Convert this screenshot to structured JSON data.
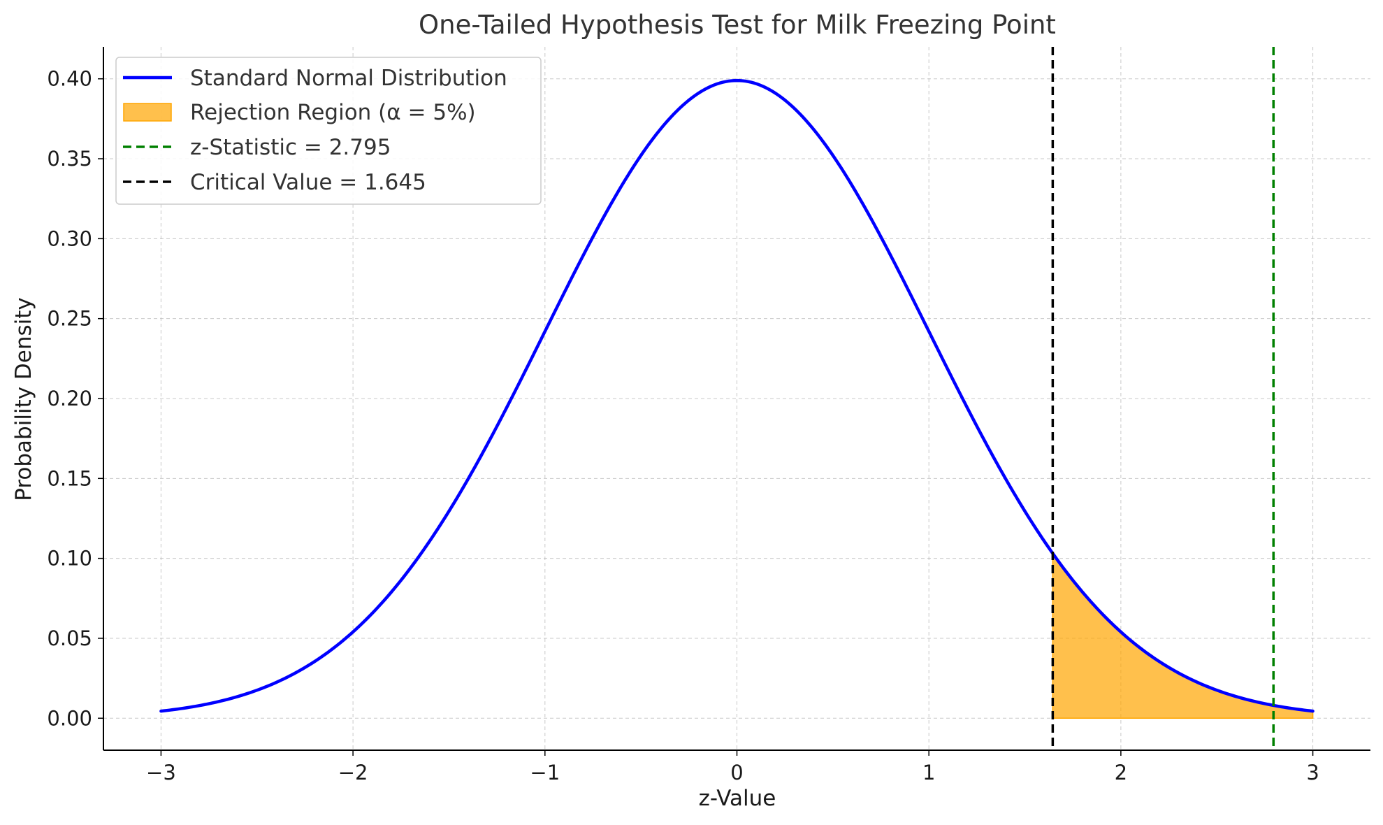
{
  "chart_data": {
    "type": "line",
    "title": "One-Tailed Hypothesis Test for Milk Freezing Point",
    "xlabel": "z-Value",
    "ylabel": "Probability Density",
    "xlim": [
      -3.3,
      3.3
    ],
    "ylim": [
      -0.02,
      0.42
    ],
    "x_ticks": [
      -3,
      -2,
      -1,
      0,
      1,
      2,
      3
    ],
    "x_tick_labels": [
      "−3",
      "−2",
      "−1",
      "0",
      "1",
      "2",
      "3"
    ],
    "y_ticks": [
      0.0,
      0.05,
      0.1,
      0.15,
      0.2,
      0.25,
      0.3,
      0.35,
      0.4
    ],
    "y_tick_labels": [
      "0.00",
      "0.05",
      "0.10",
      "0.15",
      "0.20",
      "0.25",
      "0.30",
      "0.35",
      "0.40"
    ],
    "grid": true,
    "legend_position": "top-left",
    "series": [
      {
        "name": "Standard Normal Distribution",
        "kind": "curve",
        "color": "#0000ff",
        "x": [
          -3.0,
          -2.5,
          -2.0,
          -1.5,
          -1.0,
          -0.5,
          0.0,
          0.5,
          1.0,
          1.5,
          2.0,
          2.5,
          3.0
        ],
        "y": [
          0.0044,
          0.0175,
          0.054,
          0.1295,
          0.242,
          0.3521,
          0.3989,
          0.3521,
          0.242,
          0.1295,
          0.054,
          0.0175,
          0.0044
        ]
      },
      {
        "name": "Rejection Region (α = 5%)",
        "kind": "fill",
        "color": "#ffa500",
        "x_from": 1.645,
        "x_to": 3.0
      },
      {
        "name": "z-Statistic = 2.795",
        "kind": "vline",
        "color": "#008000",
        "x": 2.795
      },
      {
        "name": "Critical Value = 1.645",
        "kind": "vline",
        "color": "#000000",
        "x": 1.645
      }
    ]
  }
}
